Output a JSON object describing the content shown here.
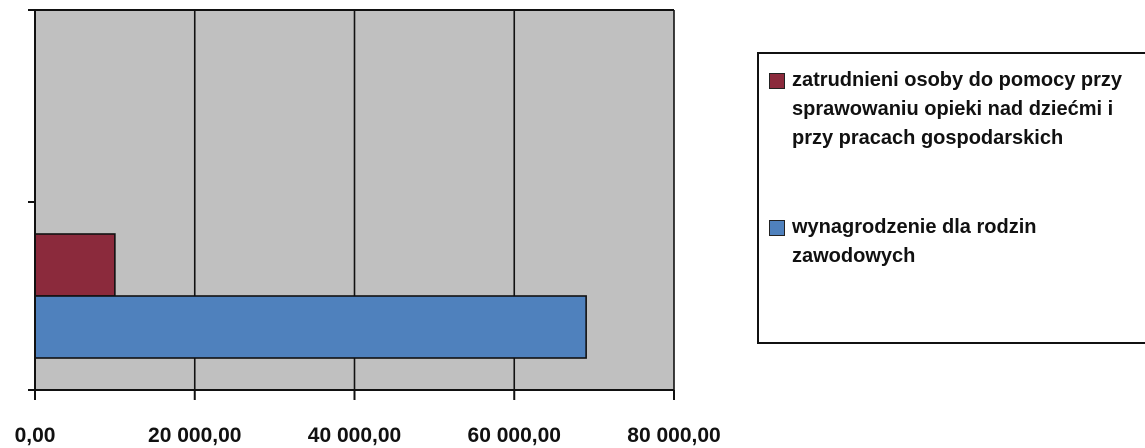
{
  "chart_data": {
    "type": "bar",
    "orientation": "horizontal",
    "title": "",
    "xlabel": "",
    "ylabel": "",
    "xlim": [
      0,
      80000
    ],
    "x_ticks": [
      0,
      20000,
      40000,
      60000,
      80000
    ],
    "x_tick_labels": [
      "0,00",
      "20 000,00",
      "40 000,00",
      "60 000,00",
      "80 000,00"
    ],
    "grid": "vertical major gridlines",
    "plot_background": "#c0c0c0",
    "legend_position": "right",
    "series": [
      {
        "name": "zatrudnieni osoby do pomocy przy sprawowaniu opieki nad dziećmi i przy pracach gospodarskich",
        "color": "#8b2a3c",
        "values": [
          10000
        ]
      },
      {
        "name": "wynagrodzenie dla rodzin zawodowych",
        "color": "#4f81bd",
        "values": [
          69000
        ]
      }
    ]
  }
}
